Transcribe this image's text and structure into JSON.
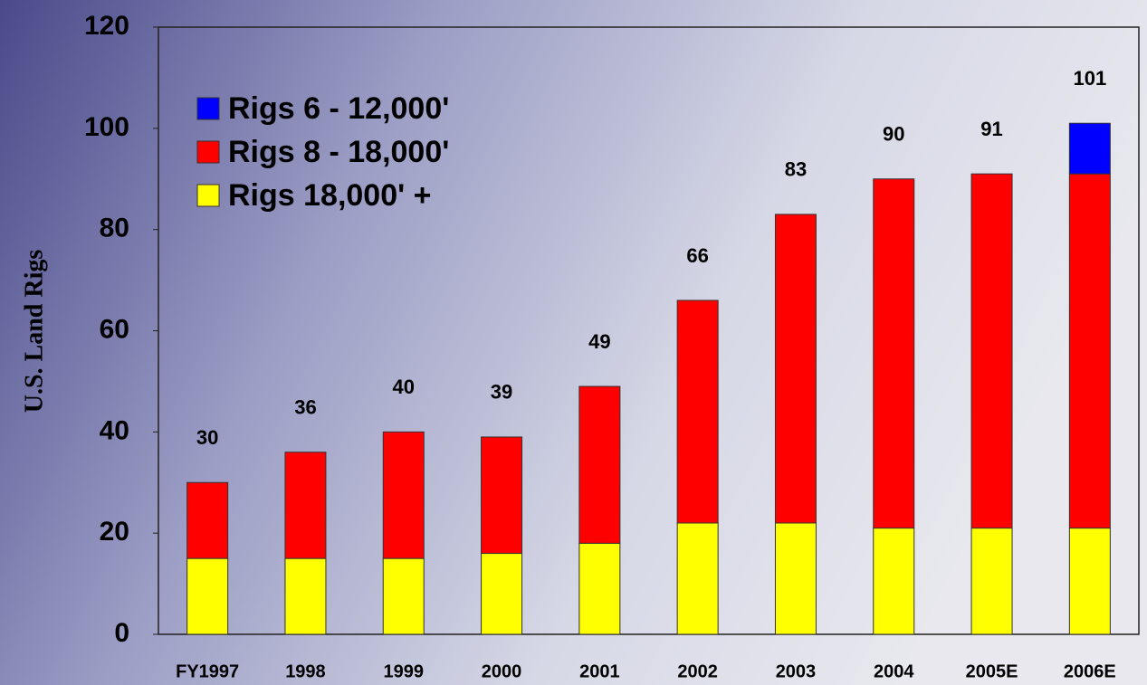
{
  "chart_data": {
    "type": "stacked_bar",
    "y_label": "U.S. Land Rigs",
    "categories": [
      "FY1997",
      "1998",
      "1999",
      "2000",
      "2001",
      "2002",
      "2003",
      "2004",
      "2005E",
      "2006E"
    ],
    "series": [
      {
        "name": "Rigs 6 - 12,000'",
        "color": "#0000ff",
        "values": [
          0,
          0,
          0,
          0,
          0,
          0,
          0,
          0,
          0,
          10
        ]
      },
      {
        "name": "Rigs 8 - 18,000'",
        "color": "#ff0000",
        "values": [
          15,
          21,
          25,
          23,
          31,
          44,
          61,
          69,
          70,
          70
        ]
      },
      {
        "name": "Rigs 18,000' +",
        "color": "#ffff00",
        "values": [
          15,
          15,
          15,
          16,
          18,
          22,
          22,
          21,
          21,
          21
        ]
      }
    ],
    "total_labels": [
      30,
      36,
      40,
      39,
      49,
      66,
      83,
      90,
      91,
      101
    ],
    "ylim": [
      0,
      120
    ],
    "yticks": [
      0,
      20,
      40,
      60,
      80,
      100,
      120
    ],
    "legend": "upper-left"
  }
}
